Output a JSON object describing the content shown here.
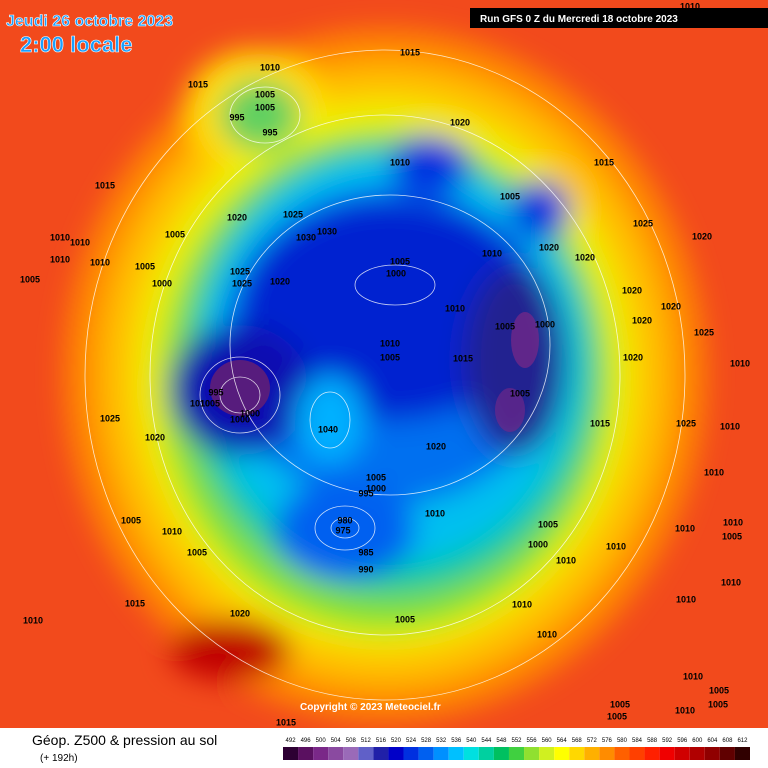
{
  "header": {
    "date": "Jeudi 26 octobre 2023",
    "time": "2:00 locale",
    "run": "Run GFS 0 Z du Mercredi 18 octobre 2023"
  },
  "copyright": "Copyright © 2023 Meteociel.fr",
  "footer": {
    "title": "Géop. Z500 & pression au sol",
    "lead": "(+ 192h)"
  },
  "legend": {
    "values": [
      492,
      496,
      500,
      504,
      508,
      512,
      516,
      520,
      524,
      528,
      532,
      536,
      540,
      544,
      548,
      552,
      556,
      560,
      564,
      568,
      572,
      576,
      580,
      584,
      588,
      592,
      596,
      600,
      604,
      608,
      612
    ],
    "colors": [
      "#2d0033",
      "#5a1060",
      "#7a2888",
      "#8a4aa0",
      "#9a6ab8",
      "#6060c8",
      "#2020a8",
      "#0000c8",
      "#0030e0",
      "#0060f0",
      "#0090ff",
      "#00c0ff",
      "#00e0e0",
      "#00d0a0",
      "#00c060",
      "#40d040",
      "#90e030",
      "#d0f020",
      "#ffff00",
      "#ffd800",
      "#ffb000",
      "#ff8c00",
      "#ff6000",
      "#ff4000",
      "#ff2000",
      "#f00000",
      "#d00000",
      "#b00000",
      "#900000",
      "#600000",
      "#300000"
    ]
  },
  "isobar_labels": [
    1010,
    1015,
    1015,
    1005,
    1005,
    995,
    995,
    1020,
    1010,
    1015,
    1015,
    1005,
    1020,
    1025,
    1030,
    1030,
    1005,
    1025,
    1020,
    1010,
    1010,
    1010,
    1010,
    1005,
    1005,
    1000,
    1010,
    1020,
    1020,
    1025,
    1025,
    1020,
    1000,
    1005,
    1020,
    1020,
    1010,
    1005,
    1000,
    1020,
    1025,
    1010,
    1005,
    1015,
    1020,
    1010,
    995,
    1005,
    1010,
    1000,
    1000,
    1005,
    1025,
    1040,
    1020,
    1015,
    1025,
    1010,
    1020,
    1010,
    1005,
    1000,
    995,
    1010,
    1005,
    1010,
    980,
    975,
    1005,
    1010,
    1010,
    1005,
    1000,
    1010,
    985,
    1005,
    1010,
    990,
    1010,
    1015,
    1010,
    1020,
    1010,
    1005,
    1010,
    1010,
    1005,
    1005,
    1005,
    1010,
    1015,
    1010,
    1010,
    1005
  ]
}
